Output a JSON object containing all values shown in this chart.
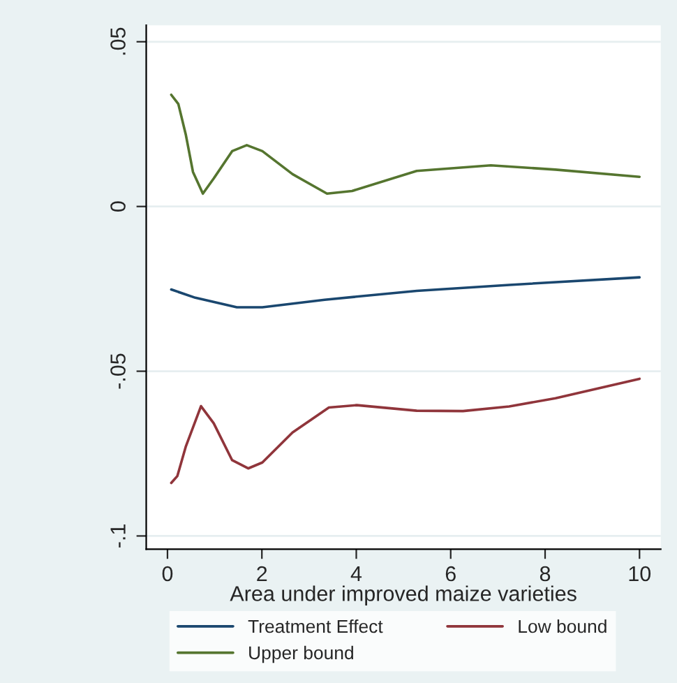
{
  "chart_data": {
    "type": "line",
    "xlabel": "Area under improved maize varieties",
    "xlim": [
      -0.45,
      10.45
    ],
    "ylim": [
      -0.104,
      0.055
    ],
    "xticks": [
      0,
      2,
      4,
      6,
      8,
      10
    ],
    "yticks": [
      {
        "value": -0.1,
        "label": "-.1"
      },
      {
        "value": -0.05,
        "label": "-.05"
      },
      {
        "value": 0,
        "label": "0"
      },
      {
        "value": 0.05,
        "label": ".05"
      }
    ],
    "grid": "y",
    "legend": "bottom",
    "marker": "none",
    "line_style": "solid",
    "series": [
      {
        "name": "Treatment Effect",
        "color": "#1a476f",
        "x": [
          0.08,
          0.59,
          1.47,
          2.01,
          3.33,
          5.28,
          7.24,
          10.0
        ],
        "values": [
          -0.0252,
          -0.0277,
          -0.0306,
          -0.0306,
          -0.0283,
          -0.0256,
          -0.0238,
          -0.0215
        ]
      },
      {
        "name": "Low bound",
        "color": "#90353b",
        "x": [
          0.08,
          0.21,
          0.39,
          0.71,
          0.98,
          1.37,
          1.71,
          2.01,
          2.65,
          3.42,
          4.01,
          5.28,
          6.26,
          7.24,
          8.22,
          10.0
        ],
        "values": [
          -0.0839,
          -0.0818,
          -0.0728,
          -0.0606,
          -0.0658,
          -0.077,
          -0.0795,
          -0.0777,
          -0.0686,
          -0.061,
          -0.0603,
          -0.062,
          -0.0621,
          -0.0607,
          -0.0582,
          -0.0523
        ]
      },
      {
        "name": "Upper bound",
        "color": "#55752f",
        "x": [
          0.08,
          0.23,
          0.39,
          0.54,
          0.75,
          0.98,
          1.37,
          1.68,
          2.01,
          2.65,
          3.38,
          3.91,
          5.28,
          6.85,
          8.22,
          10.0
        ],
        "values": [
          0.0339,
          0.0311,
          0.0217,
          0.0105,
          0.0039,
          0.0085,
          0.0168,
          0.0186,
          0.0168,
          0.0098,
          0.0039,
          0.0047,
          0.0108,
          0.0125,
          0.0112,
          0.009
        ]
      }
    ]
  }
}
